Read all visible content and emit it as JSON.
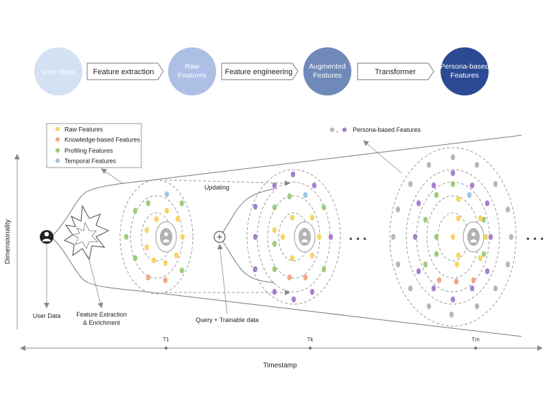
{
  "pipeline": {
    "nodes": [
      {
        "label_lines": [
          "User Data"
        ],
        "color": "#d4e1f2"
      },
      {
        "label_lines": [
          "Raw",
          "Features"
        ],
        "color": "#aebfe6"
      },
      {
        "label_lines": [
          "Augmented",
          "Features"
        ],
        "color": "#6f89b8"
      },
      {
        "label_lines": [
          "Persona-based",
          "Features"
        ],
        "color": "#2a4a94"
      }
    ],
    "steps": [
      "Feature extraction",
      "Feature engineering",
      "Transformer"
    ]
  },
  "legend": {
    "items": [
      {
        "label": "Raw Features",
        "color": "#f7d563"
      },
      {
        "label": "Knowledge-based Features",
        "color": "#f0a884"
      },
      {
        "label": "Profiling Features",
        "color": "#9ecb7d"
      },
      {
        "label": "Temporal Features",
        "color": "#9ec7e6"
      }
    ],
    "persona": {
      "label": "Persona-based Features",
      "separator": ",",
      "colors": [
        "#b8b8b8",
        "#a57fd0"
      ]
    }
  },
  "annotations": {
    "updating": "Updating",
    "user_data": "User Data",
    "feature_extraction": [
      "Feature Extraction",
      "& Enrichment"
    ],
    "query": "Query + Trainable data",
    "ellipsis": "• • •"
  },
  "axes": {
    "y_label": "Dimensionality",
    "x_label": "Timestamp",
    "ticks": [
      "T1",
      "Tk",
      "Tm"
    ]
  },
  "colors": {
    "raw": "#f7d563",
    "knowledge": "#f0a884",
    "profiling": "#9ecb7d",
    "temporal": "#9ec7e6",
    "persona_gray": "#b8b8b8",
    "persona_purple": "#a57fd0",
    "line": "#777777",
    "dashed": "#999999"
  }
}
